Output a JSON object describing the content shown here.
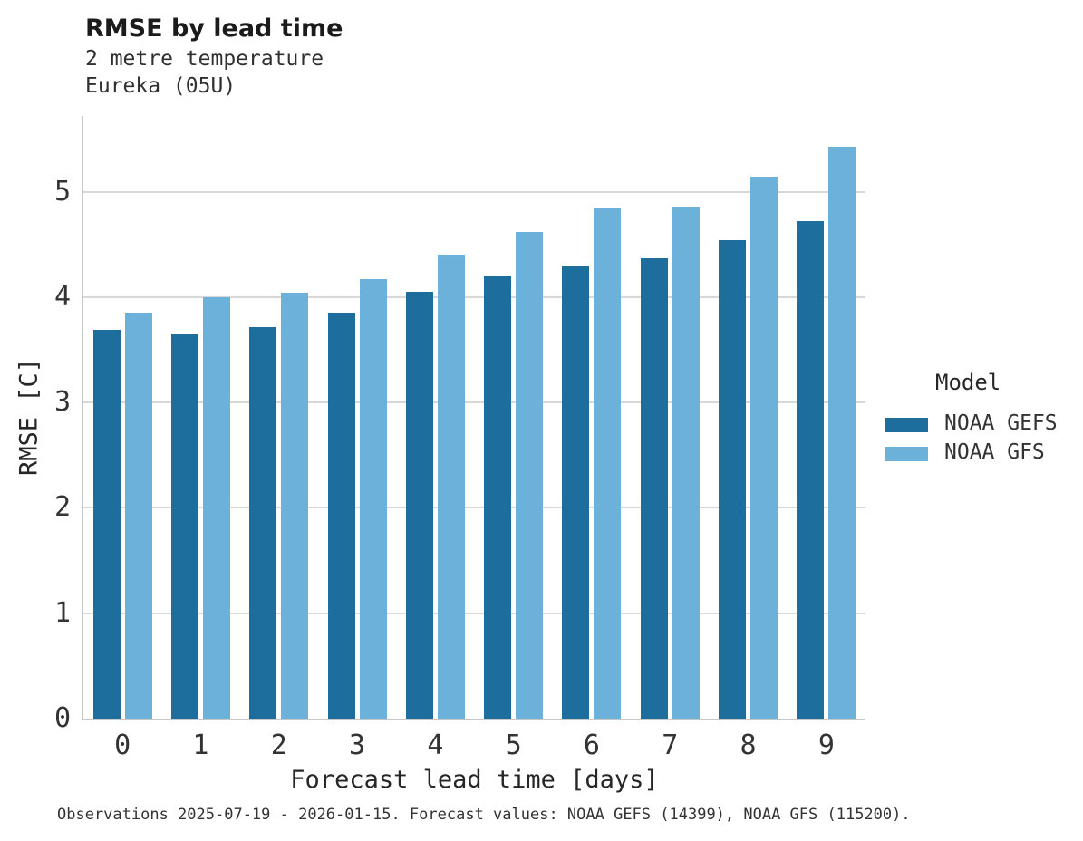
{
  "header": {
    "title": "RMSE by lead time",
    "subtitle_line1": "2 metre temperature",
    "subtitle_line2": "Eureka (05U)"
  },
  "legend": {
    "title": "Model"
  },
  "footer": {
    "caption": "Observations 2025-07-19 - 2026-01-15. Forecast values: NOAA GEFS (14399), NOAA GFS (115200)."
  },
  "colors": {
    "gefs_dark_blue": "#1d6e9d",
    "gfs_light_blue": "#6bb1d9",
    "gridline_gray": "#d8d8d8",
    "axis_gray": "#c7c7c8"
  },
  "chart_data": {
    "type": "bar",
    "title": "RMSE by lead time",
    "subtitle": [
      "2 metre temperature",
      "Eureka (05U)"
    ],
    "xlabel": "Forecast lead time [days]",
    "ylabel": "RMSE [C]",
    "categories": [
      "0",
      "1",
      "2",
      "3",
      "4",
      "5",
      "6",
      "7",
      "8",
      "9"
    ],
    "series": [
      {
        "name": "NOAA GEFS",
        "color": "#1d6e9d",
        "values": [
          3.69,
          3.65,
          3.72,
          3.85,
          4.05,
          4.2,
          4.29,
          4.37,
          4.54,
          4.72
        ]
      },
      {
        "name": "NOAA GFS",
        "color": "#6bb1d9",
        "values": [
          3.85,
          4.0,
          4.04,
          4.17,
          4.4,
          4.62,
          4.84,
          4.86,
          5.14,
          5.43
        ]
      }
    ],
    "ylim": [
      0,
      5.72
    ],
    "yticks": [
      0,
      1,
      2,
      3,
      4,
      5
    ],
    "grid": "horizontal-only",
    "legend_position": "right",
    "legend_title": "Model",
    "caption": "Observations 2025-07-19 - 2026-01-15. Forecast values: NOAA GEFS (14399), NOAA GFS (115200)."
  }
}
